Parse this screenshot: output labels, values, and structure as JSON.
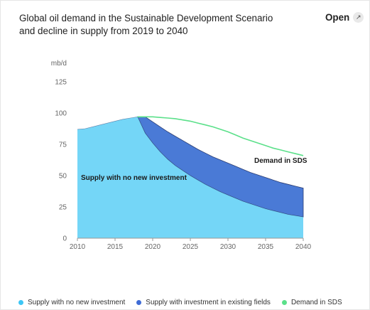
{
  "header": {
    "title": "Global oil demand in the Sustainable Development Scenario and decline in supply from 2019 to 2040",
    "open_label": "Open",
    "open_icon": "external-link-icon"
  },
  "chart_data": {
    "type": "area",
    "title": "Global oil demand in the Sustainable Development Scenario and decline in supply from 2019 to 2040",
    "ylabel": "mb/d",
    "xlabel": "",
    "xlim": [
      2010,
      2040
    ],
    "ylim": [
      0,
      125
    ],
    "xticks": [
      2010,
      2015,
      2020,
      2025,
      2030,
      2035,
      2040
    ],
    "yticks": [
      0,
      25,
      50,
      75,
      100,
      125
    ],
    "grid": false,
    "legend_position": "bottom",
    "annotations": [
      {
        "text": "Supply with no new investment",
        "series": "Supply with no new investment"
      },
      {
        "text": "Demand in SDS",
        "series": "Demand in SDS"
      }
    ],
    "series": [
      {
        "name": "Supply with no new investment",
        "type": "area",
        "color": "#74D6F7",
        "x": [
          2010,
          2011,
          2012,
          2013,
          2014,
          2015,
          2016,
          2017,
          2018,
          2019,
          2020,
          2021,
          2022,
          2023,
          2024,
          2025,
          2026,
          2027,
          2028,
          2029,
          2030,
          2031,
          2032,
          2033,
          2034,
          2035,
          2036,
          2037,
          2038,
          2039,
          2040
        ],
        "values": [
          87,
          87.5,
          89,
          90.5,
          92,
          93.5,
          95,
          96,
          97,
          84,
          76,
          69,
          63,
          58,
          54,
          50,
          46.5,
          43,
          40,
          37,
          34.5,
          32,
          29.5,
          27.5,
          25.5,
          23.5,
          22,
          20.5,
          19,
          18,
          17
        ]
      },
      {
        "name": "Supply with investment in existing fields",
        "type": "area",
        "color": "#4A7AD6",
        "x": [
          2018,
          2019,
          2020,
          2021,
          2022,
          2023,
          2024,
          2025,
          2026,
          2027,
          2028,
          2029,
          2030,
          2031,
          2032,
          2033,
          2034,
          2035,
          2036,
          2037,
          2038,
          2039,
          2040
        ],
        "values": [
          97,
          97,
          93,
          89,
          85,
          81.5,
          78,
          74.5,
          71,
          68,
          65,
          62.5,
          60,
          57.5,
          55,
          52.5,
          50.5,
          48.5,
          46.5,
          44.5,
          43,
          41.5,
          40
        ]
      },
      {
        "name": "Demand in SDS",
        "type": "line",
        "color": "#5BE08A",
        "x": [
          2018,
          2019,
          2020,
          2021,
          2022,
          2023,
          2024,
          2025,
          2026,
          2027,
          2028,
          2029,
          2030,
          2031,
          2032,
          2033,
          2034,
          2035,
          2036,
          2037,
          2038,
          2039,
          2040
        ],
        "values": [
          97,
          97,
          97,
          96.5,
          96,
          95.5,
          94.5,
          93.5,
          92,
          90.5,
          89,
          87,
          85,
          82.5,
          80,
          78,
          76,
          74,
          72,
          70.5,
          69,
          67.5,
          66
        ]
      }
    ]
  }
}
